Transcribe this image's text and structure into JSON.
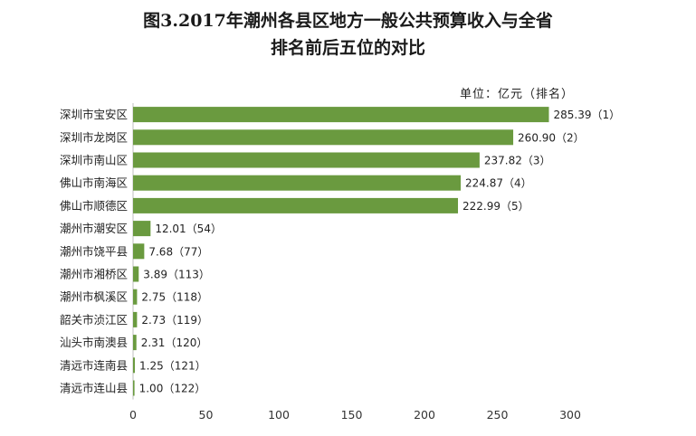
{
  "title_line1": "图3.2017年潮州各县区地方一般公共预算收入与全省",
  "title_line2": "排名前后五位的对比",
  "unit_label": "单位：亿元（排名）",
  "chart_data": {
    "type": "bar",
    "orientation": "horizontal",
    "categories": [
      "深圳市宝安区",
      "深圳市龙岗区",
      "深圳市南山区",
      "佛山市南海区",
      "佛山市顺德区",
      "潮州市潮安区",
      "潮州市饶平县",
      "潮州市湘桥区",
      "潮州市枫溪区",
      "韶关市浈江区",
      "汕头市南澳县",
      "清远市连南县",
      "清远市连山县"
    ],
    "values": [
      285.39,
      260.9,
      237.82,
      224.87,
      222.99,
      12.01,
      7.68,
      3.89,
      2.75,
      2.73,
      2.31,
      1.25,
      1.0
    ],
    "ranks": [
      1,
      2,
      3,
      4,
      5,
      54,
      77,
      113,
      118,
      119,
      120,
      121,
      122
    ],
    "data_labels": [
      "285.39（1）",
      "260.90（2）",
      "237.82（3）",
      "224.87（4）",
      "222.99（5）",
      "12.01（54）",
      "7.68（77）",
      "3.89（113）",
      "2.75（118）",
      "2.73（119）",
      "2.31（120）",
      "1.25（121）",
      "1.00（122）"
    ],
    "xticks": [
      0,
      50,
      100,
      150,
      200,
      250,
      300
    ],
    "xlim": [
      0,
      300
    ],
    "grid": false,
    "legend": "none",
    "bar_color": "#6a9a3f"
  }
}
